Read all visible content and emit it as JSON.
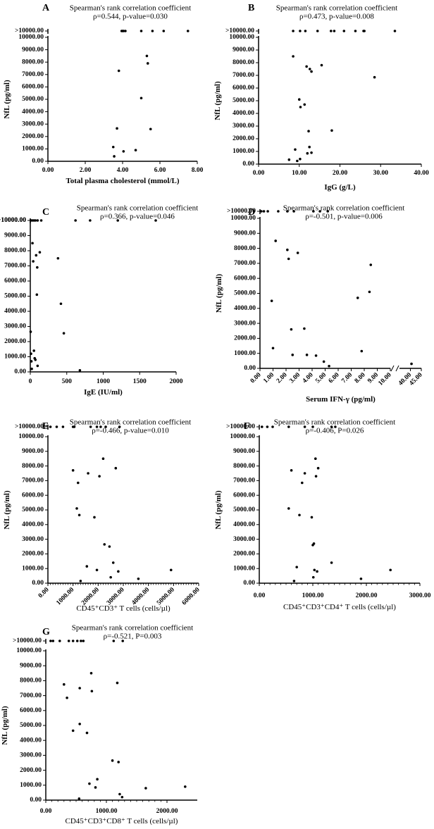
{
  "figure": {
    "ylabel": "NfL (pg/ml)",
    "y_ticks": [
      "0.00",
      "1000.00",
      "2000.00",
      "3000.00",
      "4000.00",
      "5000.00",
      "6000.00",
      "7000.00",
      "8000.00",
      "9000.00",
      "10000.00"
    ],
    "y_break_label": ">10000.00",
    "stat_title": "Spearman's rank correlation coefficient"
  },
  "chart_data": [
    {
      "id": "A",
      "panel_label": "A",
      "type": "scatter",
      "title": "Spearman's rank correlation coefficient",
      "subtitle": "ρ=0.544, p-value=0.030",
      "xlabel": "Total plasma cholesterol (mmol/L)",
      "ylabel": "NfL (pg/ml)",
      "x_ticks": [
        "0.00",
        "2.00",
        "4.00",
        "6.00",
        "8.00"
      ],
      "xlim": [
        0,
        8
      ],
      "ylim": [
        0,
        10000
      ],
      "points": [
        {
          "x": 3.5,
          "y": 1150
        },
        {
          "x": 3.55,
          "y": 400
        },
        {
          "x": 3.7,
          "y": 2650
        },
        {
          "x": 3.8,
          "y": 7300
        },
        {
          "x": 4.05,
          "y": 800
        },
        {
          "x": 4.7,
          "y": 900
        },
        {
          "x": 5.0,
          "y": 5100
        },
        {
          "x": 5.3,
          "y": 8500
        },
        {
          "x": 5.35,
          "y": 7900
        },
        {
          "x": 5.5,
          "y": 2600
        }
      ],
      "above_break": [
        3.95,
        4.0,
        4.05,
        4.15,
        5.0,
        5.6,
        6.2,
        7.5
      ]
    },
    {
      "id": "B",
      "panel_label": "B",
      "type": "scatter",
      "title": "Spearman's rank correlation coefficient",
      "subtitle": "ρ=0.473, p-value=0.008",
      "xlabel": "IgG (g/L)",
      "ylabel": "NfL (pg/ml)",
      "x_ticks": [
        "0.00",
        "10.00",
        "20.00",
        "30.00",
        "40.00"
      ],
      "xlim": [
        0,
        40
      ],
      "ylim": [
        0,
        10000
      ],
      "points": [
        {
          "x": 7.5,
          "y": 350
        },
        {
          "x": 8.5,
          "y": 8500
        },
        {
          "x": 9,
          "y": 1150
        },
        {
          "x": 9.5,
          "y": 250
        },
        {
          "x": 10,
          "y": 5100
        },
        {
          "x": 10.2,
          "y": 400
        },
        {
          "x": 10.3,
          "y": 4500
        },
        {
          "x": 11.3,
          "y": 4700
        },
        {
          "x": 11.8,
          "y": 7700
        },
        {
          "x": 12,
          "y": 850
        },
        {
          "x": 12.3,
          "y": 2600
        },
        {
          "x": 12.5,
          "y": 1350
        },
        {
          "x": 12.6,
          "y": 7500
        },
        {
          "x": 13,
          "y": 7300
        },
        {
          "x": 13,
          "y": 900
        },
        {
          "x": 15.5,
          "y": 7800
        },
        {
          "x": 18,
          "y": 2650
        },
        {
          "x": 28.5,
          "y": 6850
        }
      ],
      "above_break": [
        8.5,
        10.2,
        11.5,
        14.5,
        17.8,
        18.6,
        21,
        23.8,
        25.8,
        26,
        33.5
      ]
    },
    {
      "id": "C",
      "panel_label": "C",
      "type": "scatter",
      "title": "Spearman's rank correlation coefficient",
      "subtitle": "ρ=0.366, p-value=0.046",
      "xlabel": "IgE (IU/ml)",
      "ylabel": "NfL (pg/ml)",
      "x_ticks": [
        "0",
        "500",
        "1000",
        "1500",
        "2000"
      ],
      "xlim": [
        0,
        2000
      ],
      "ylim": [
        0,
        10000
      ],
      "points": [
        {
          "x": 5,
          "y": 2650
        },
        {
          "x": 10,
          "y": 1200
        },
        {
          "x": 15,
          "y": 700
        },
        {
          "x": 20,
          "y": 200
        },
        {
          "x": 30,
          "y": 8500
        },
        {
          "x": 40,
          "y": 7300
        },
        {
          "x": 50,
          "y": 1400
        },
        {
          "x": 60,
          "y": 900
        },
        {
          "x": 70,
          "y": 800
        },
        {
          "x": 80,
          "y": 7700
        },
        {
          "x": 90,
          "y": 5100
        },
        {
          "x": 95,
          "y": 6900
        },
        {
          "x": 100,
          "y": 400
        },
        {
          "x": 130,
          "y": 7900
        },
        {
          "x": 380,
          "y": 7500
        },
        {
          "x": 420,
          "y": 4500
        },
        {
          "x": 460,
          "y": 2550
        },
        {
          "x": 680,
          "y": 100
        }
      ],
      "above_break": [
        10,
        30,
        50,
        70,
        100,
        150,
        620,
        820,
        1200,
        1720
      ]
    },
    {
      "id": "D",
      "panel_label": "D",
      "type": "scatter",
      "title": "Spearman's rank correlation coefficient",
      "subtitle": "ρ=-0.501, p-value=0.006",
      "xlabel": "Serum IFN-γ (pg/ml)",
      "ylabel": "NfL (pg/ml)",
      "x_ticks": [
        "0.00",
        "1.00",
        "2.00",
        "3.00",
        "4.00",
        "5.00",
        "6.00",
        "7.00",
        "8.00",
        "9.00",
        "10.00",
        "40.00",
        "45.00"
      ],
      "x_break": {
        "segment1": [
          0,
          10
        ],
        "segment2": [
          35,
          45
        ]
      },
      "ylim": [
        0,
        10000
      ],
      "points": [
        {
          "x": 0.9,
          "y": 4500
        },
        {
          "x": 1.0,
          "y": 1350
        },
        {
          "x": 1.2,
          "y": 8500
        },
        {
          "x": 2.1,
          "y": 7900
        },
        {
          "x": 2.2,
          "y": 7300
        },
        {
          "x": 2.4,
          "y": 2600
        },
        {
          "x": 2.5,
          "y": 900
        },
        {
          "x": 2.9,
          "y": 7700
        },
        {
          "x": 3.4,
          "y": 2650
        },
        {
          "x": 3.6,
          "y": 900
        },
        {
          "x": 4.3,
          "y": 850
        },
        {
          "x": 4.9,
          "y": 450
        },
        {
          "x": 5.3,
          "y": 150
        },
        {
          "x": 7.5,
          "y": 4700
        },
        {
          "x": 7.8,
          "y": 1150
        },
        {
          "x": 8.4,
          "y": 5100
        },
        {
          "x": 8.5,
          "y": 6900
        },
        {
          "x": 40.5,
          "y": 300
        }
      ],
      "above_break": [
        0.1,
        0.3,
        0.6,
        1.4,
        2.1,
        2.6,
        4.1,
        4.6,
        5.2
      ]
    },
    {
      "id": "E",
      "panel_label": "E",
      "type": "scatter",
      "title": "Spearman's rank correlation coefficient",
      "subtitle": "ρ=-0.466, p-value=0.010",
      "xlabel": "CD45⁺CD3⁺ T cells (cells/µl)",
      "ylabel": "NfL (pg/ml)",
      "x_ticks": [
        "0.00",
        "1000.00",
        "2000.00",
        "3000.00",
        "4000.00",
        "5000.00",
        "6000.00"
      ],
      "xlim": [
        0,
        6000
      ],
      "ylim": [
        0,
        10000
      ],
      "points": [
        {
          "x": 1000,
          "y": 7700
        },
        {
          "x": 1150,
          "y": 5100
        },
        {
          "x": 1200,
          "y": 6850
        },
        {
          "x": 1250,
          "y": 4650
        },
        {
          "x": 1300,
          "y": 150
        },
        {
          "x": 1550,
          "y": 1150
        },
        {
          "x": 1600,
          "y": 7500
        },
        {
          "x": 1850,
          "y": 4500
        },
        {
          "x": 1950,
          "y": 900
        },
        {
          "x": 2050,
          "y": 7300
        },
        {
          "x": 2200,
          "y": 8500
        },
        {
          "x": 2250,
          "y": 2650
        },
        {
          "x": 2450,
          "y": 2500
        },
        {
          "x": 2500,
          "y": 400
        },
        {
          "x": 2600,
          "y": 1400
        },
        {
          "x": 2700,
          "y": 7850
        },
        {
          "x": 2800,
          "y": 800
        },
        {
          "x": 3600,
          "y": 300
        },
        {
          "x": 4900,
          "y": 900
        }
      ],
      "above_break": [
        100,
        350,
        600,
        1000,
        1050,
        1700,
        1950,
        2100,
        2300,
        2850
      ]
    },
    {
      "id": "F",
      "panel_label": "F",
      "type": "scatter",
      "title": "Spearman's rank correlation coefficient",
      "subtitle": "ρ=-0.406, P=0.026",
      "xlabel": "CD45⁺CD3⁺CD4⁺ T cells (cells/µl)",
      "ylabel": "NfL (pg/ml)",
      "x_ticks": [
        "0.00",
        "1000.00",
        "2000.00",
        "3000.00"
      ],
      "xlim": [
        0,
        3000
      ],
      "ylim": [
        0,
        10000
      ],
      "points": [
        {
          "x": 550,
          "y": 5100
        },
        {
          "x": 600,
          "y": 7700
        },
        {
          "x": 650,
          "y": 150
        },
        {
          "x": 700,
          "y": 1100
        },
        {
          "x": 750,
          "y": 4650
        },
        {
          "x": 800,
          "y": 6850
        },
        {
          "x": 850,
          "y": 7500
        },
        {
          "x": 980,
          "y": 4500
        },
        {
          "x": 1000,
          "y": 2600
        },
        {
          "x": 1020,
          "y": 2700
        },
        {
          "x": 1050,
          "y": 8500
        },
        {
          "x": 1060,
          "y": 7300
        },
        {
          "x": 1080,
          "y": 800
        },
        {
          "x": 1100,
          "y": 7850
        },
        {
          "x": 1010,
          "y": 400
        },
        {
          "x": 1030,
          "y": 900
        },
        {
          "x": 1350,
          "y": 1400
        },
        {
          "x": 1900,
          "y": 300
        },
        {
          "x": 2450,
          "y": 900
        }
      ],
      "above_break": [
        50,
        150,
        250,
        550,
        850,
        1000,
        1350,
        1420
      ]
    },
    {
      "id": "G",
      "panel_label": "G",
      "type": "scatter",
      "title": "Spearman's rank correlation coefficient",
      "subtitle": "ρ=-0.521, P=0.003",
      "xlabel": "CD45⁺CD3⁺CD8⁺ T cells (cells/µl)",
      "ylabel": "NfL (pg/ml)",
      "x_ticks": [
        "0.00",
        "1000.00",
        "2000.00"
      ],
      "xlim": [
        0,
        2500
      ],
      "ylim": [
        0,
        10000
      ],
      "points": [
        {
          "x": 300,
          "y": 7750
        },
        {
          "x": 350,
          "y": 6850
        },
        {
          "x": 450,
          "y": 4650
        },
        {
          "x": 550,
          "y": 100
        },
        {
          "x": 560,
          "y": 5100
        },
        {
          "x": 560,
          "y": 7500
        },
        {
          "x": 680,
          "y": 4500
        },
        {
          "x": 720,
          "y": 1100
        },
        {
          "x": 750,
          "y": 8500
        },
        {
          "x": 760,
          "y": 7300
        },
        {
          "x": 820,
          "y": 850
        },
        {
          "x": 850,
          "y": 1400
        },
        {
          "x": 1100,
          "y": 2650
        },
        {
          "x": 1200,
          "y": 2550
        },
        {
          "x": 1180,
          "y": 7850
        },
        {
          "x": 1220,
          "y": 400
        },
        {
          "x": 1260,
          "y": 200
        },
        {
          "x": 1650,
          "y": 800
        },
        {
          "x": 2300,
          "y": 900
        }
      ],
      "above_break": [
        80,
        120,
        230,
        380,
        450,
        520,
        580,
        620,
        1120,
        1270
      ]
    }
  ]
}
